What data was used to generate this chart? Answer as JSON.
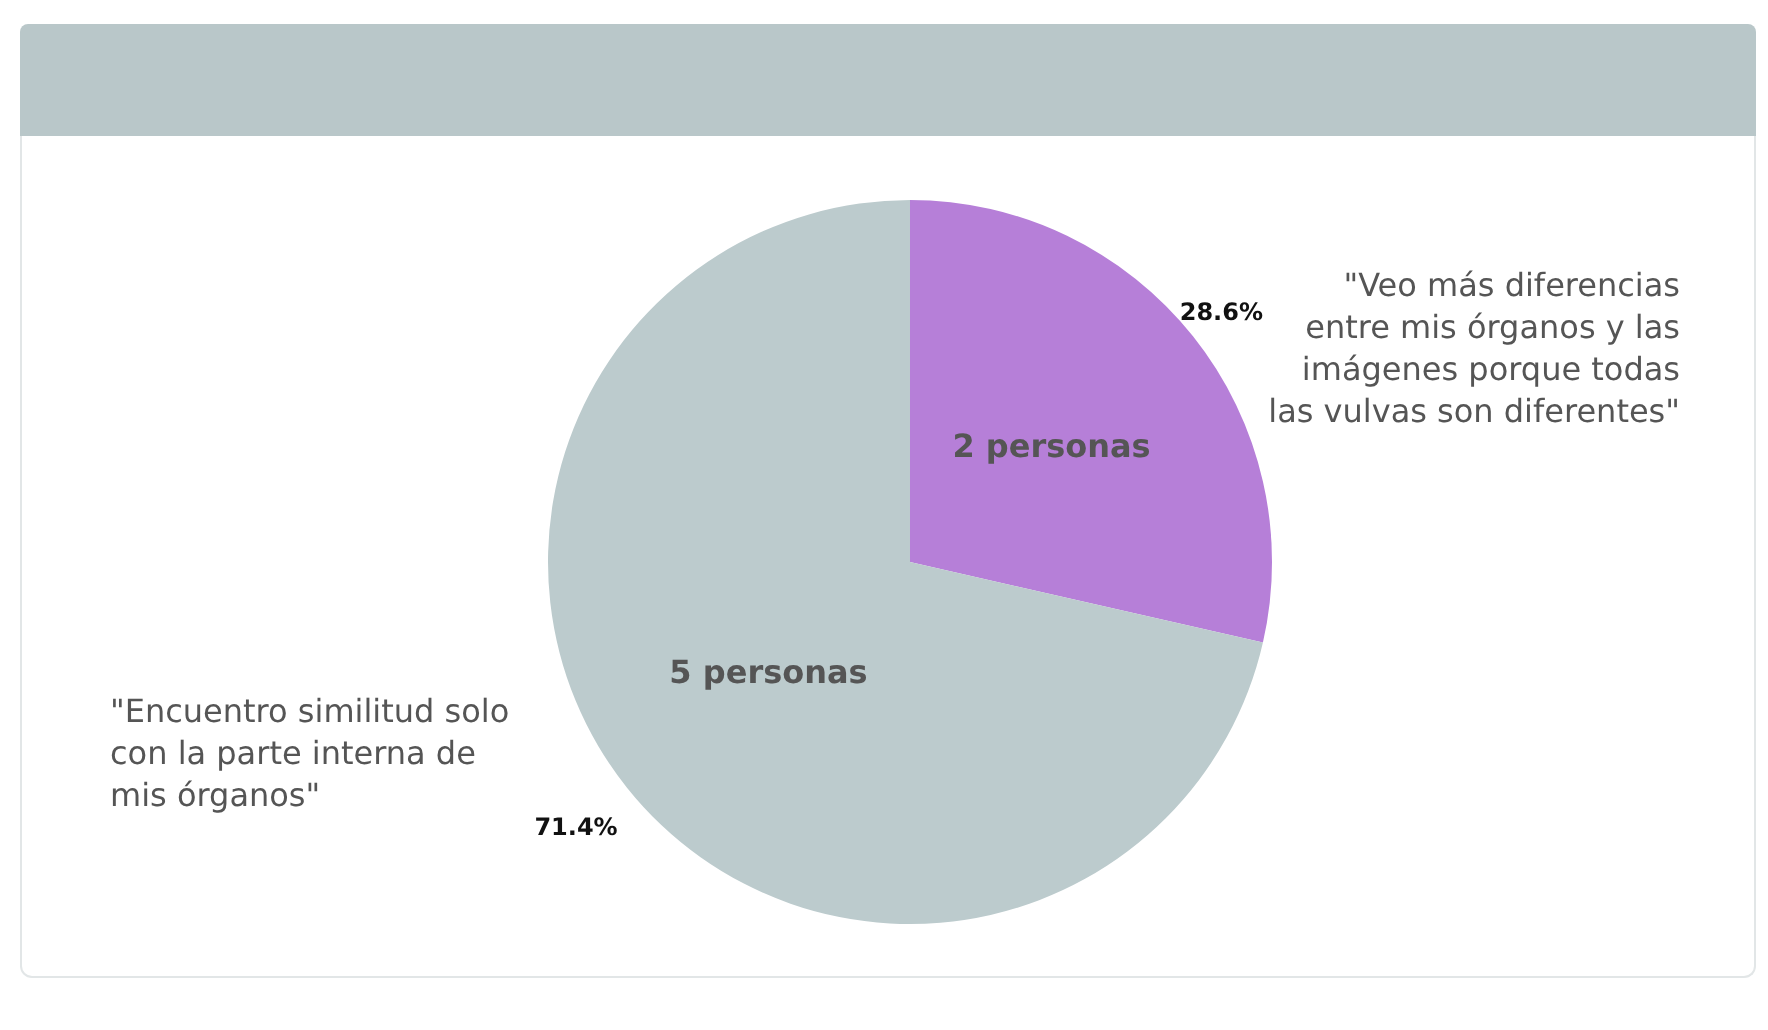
{
  "chart_data": {
    "type": "pie",
    "categories": [
      "\"Veo más diferencias entre mis órganos y las imágenes porque todas las vulvas son diferentes\"",
      "\"Encuentro similitud solo con la parte interna de mis órganos\""
    ],
    "values": [
      2,
      5
    ],
    "colors": [
      "#b67fd8",
      "#bccbcd"
    ],
    "value_labels": [
      "2 personas",
      "5 personas"
    ],
    "annotations": [
      "28.6%",
      "71.4%"
    ],
    "legend": false
  }
}
